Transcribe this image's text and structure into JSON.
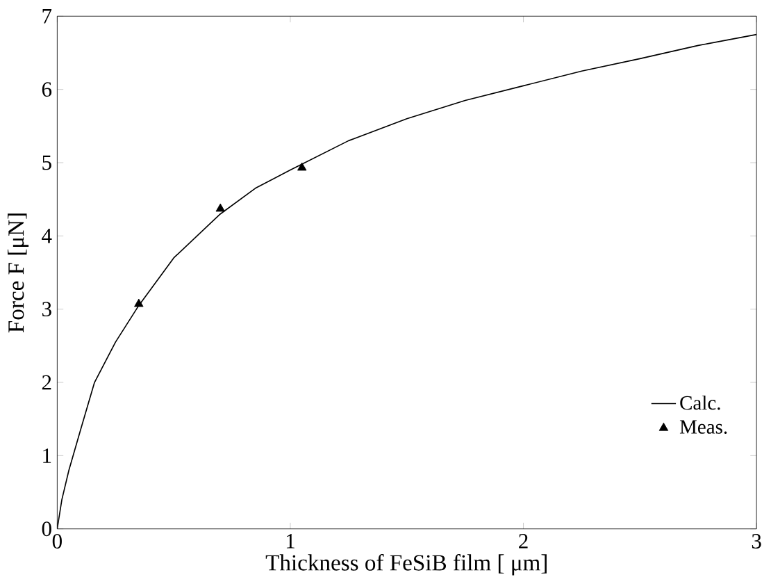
{
  "chart_data": {
    "type": "line",
    "xlabel": "Thickness of FeSiB film [ μm]",
    "ylabel": "Force F [μN]",
    "xlim": [
      0,
      3
    ],
    "ylim": [
      0,
      7
    ],
    "xticks": [
      0,
      1,
      2,
      3
    ],
    "yticks": [
      0,
      1,
      2,
      3,
      4,
      5,
      6,
      7
    ],
    "grid": false,
    "legend": "bottom right",
    "series": [
      {
        "name": "Calc.",
        "color": "#000000",
        "marker": "none",
        "x": [
          0,
          0.02,
          0.05,
          0.1,
          0.16,
          0.25,
          0.35,
          0.5,
          0.7,
          0.85,
          1.0,
          1.25,
          1.5,
          1.75,
          2.0,
          2.25,
          2.5,
          2.75,
          3.0
        ],
        "values": [
          0,
          0.4,
          0.8,
          1.35,
          2.0,
          2.55,
          3.05,
          3.7,
          4.3,
          4.65,
          4.9,
          5.3,
          5.6,
          5.85,
          6.05,
          6.25,
          6.42,
          6.6,
          6.75
        ]
      },
      {
        "name": "Meas.",
        "type": "scatter",
        "color": "#000000",
        "marker": "triangle",
        "x": [
          0.35,
          0.7,
          1.05
        ],
        "values": [
          3.07,
          4.37,
          4.93
        ]
      }
    ]
  }
}
